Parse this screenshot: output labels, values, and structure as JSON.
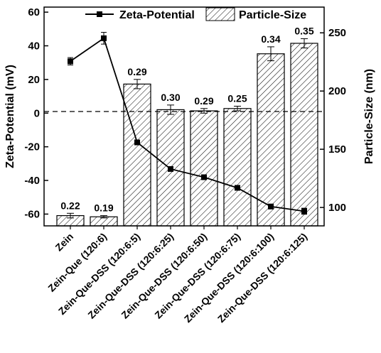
{
  "chart_data": {
    "type": "bar",
    "categories": [
      "Zein",
      "Zein-Que (120:6)",
      "Zein-Que-DSS (120:6:5)",
      "Zein-Que-DSS (120:6:25)",
      "Zein-Que-DSS (120:6:50)",
      "Zein-Que-DSS (120:6:75)",
      "Zein-Que-DSS (120:6:100)",
      "Zein-Que-DSS (120:6:125)"
    ],
    "series": [
      {
        "name": "Particle-Size",
        "type": "bar",
        "axis": "right",
        "values": [
          93,
          92,
          206,
          184,
          183,
          185,
          232,
          241
        ],
        "errors": [
          2,
          1,
          4,
          4,
          2,
          2,
          6,
          4
        ],
        "data_labels": [
          "0.22",
          "0.19",
          "0.29",
          "0.30",
          "0.29",
          "0.25",
          "0.34",
          "0.35"
        ]
      },
      {
        "name": "Zeta-Potential",
        "type": "line",
        "axis": "left",
        "values": [
          30.8,
          44.5,
          -17.4,
          -33.2,
          -38.1,
          -44.4,
          -55.5,
          -58.3
        ],
        "errors": [
          2.2,
          3.5,
          0.8,
          0.8,
          0.8,
          0.8,
          1.4,
          1.8
        ]
      }
    ],
    "ylabel": "Zeta-Potential (mV)",
    "y2label": "Particle-Size (nm)",
    "ylim": [
      -67,
      63
    ],
    "y2lim": [
      84.2,
      272.1
    ],
    "yticks": [
      -60,
      -40,
      -20,
      0,
      20,
      40,
      60
    ],
    "y2ticks": [
      100,
      150,
      200,
      250
    ],
    "reference_line": 0,
    "legend": "top",
    "grid": false
  },
  "colors": {
    "bar_fill": "#ffffff",
    "bar_hatch": "#000000",
    "line": "#000000"
  }
}
